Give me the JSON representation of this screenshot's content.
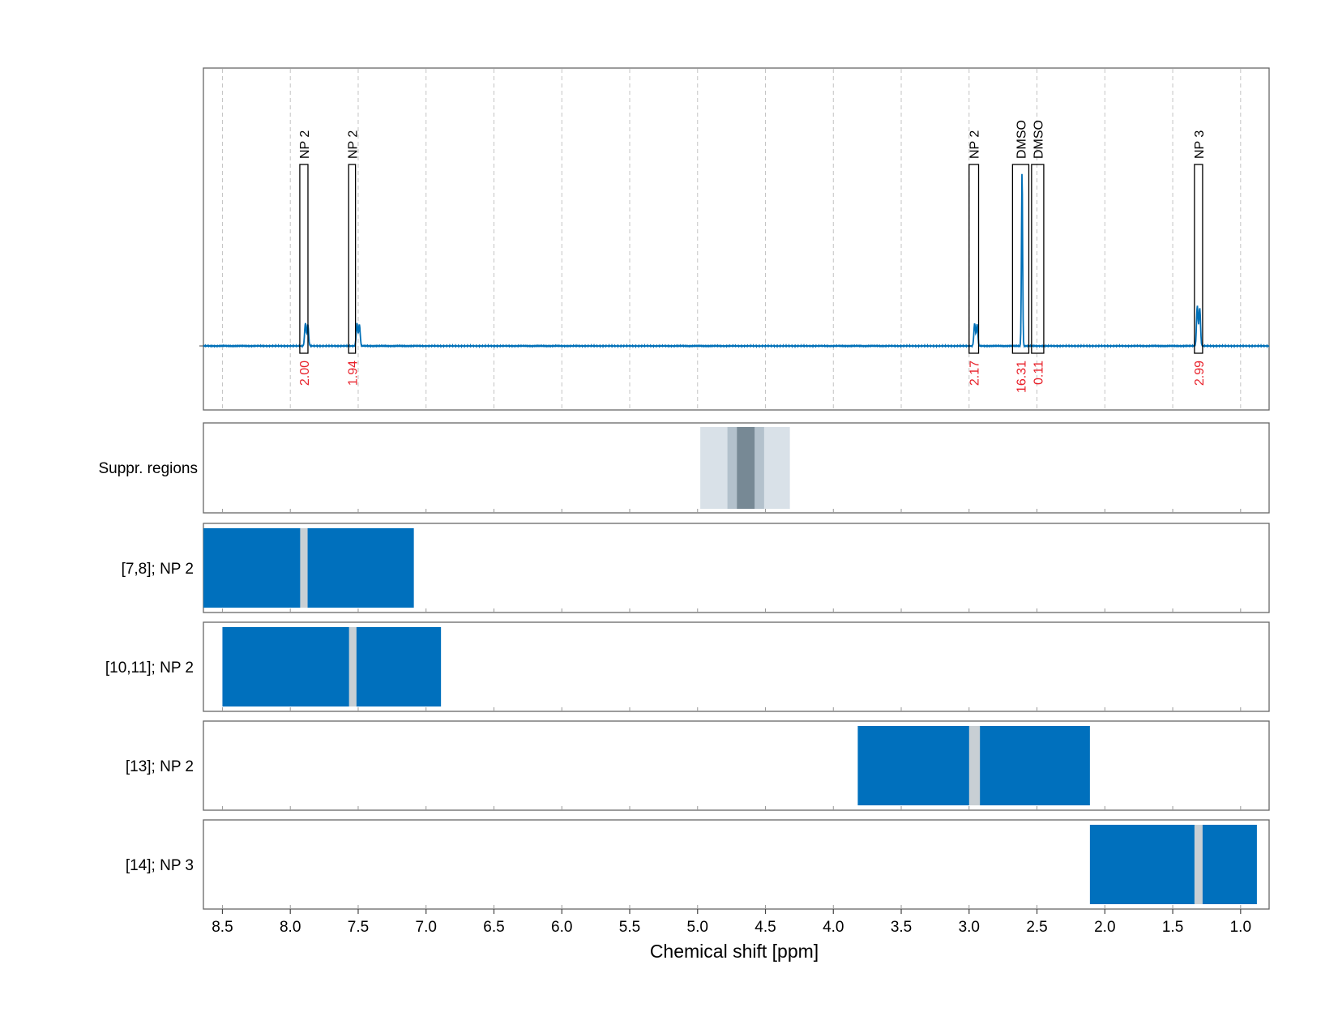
{
  "chart_data": {
    "type": "nmr-spectrum",
    "xlabel": "Chemical shift [ppm]",
    "xlim": [
      8.64,
      0.79
    ],
    "xticks": [
      "8.5",
      "8.0",
      "7.5",
      "7.0",
      "6.5",
      "6.0",
      "5.5",
      "5.0",
      "4.5",
      "4.0",
      "3.5",
      "3.0",
      "2.5",
      "2.0",
      "1.5",
      "1.0"
    ],
    "spectrum": {
      "color": "#0070b8",
      "peaks": [
        {
          "shift": 7.88,
          "height": 0.13
        },
        {
          "shift": 7.5,
          "height": 0.13
        },
        {
          "shift": 2.95,
          "height": 0.13
        },
        {
          "shift": 2.61,
          "height": 1.0
        },
        {
          "shift": 1.31,
          "height": 0.23
        }
      ]
    },
    "annotations": [
      {
        "label": "NP 2",
        "integral": "2.00",
        "from": 7.93,
        "to": 7.87
      },
      {
        "label": "NP 2",
        "integral": "1.94",
        "from": 7.57,
        "to": 7.52
      },
      {
        "label": "NP 2",
        "integral": "2.17",
        "from": 3.0,
        "to": 2.93
      },
      {
        "label": "DMSO",
        "integral": "16.31",
        "from": 2.68,
        "to": 2.56
      },
      {
        "label": "DMSO",
        "integral": "0.11",
        "from": 2.54,
        "to": 2.45
      },
      {
        "label": "NP 3",
        "integral": "2.99",
        "from": 1.34,
        "to": 1.28
      }
    ],
    "integral_color": "#e8212a",
    "suppression": {
      "label": "Suppr. regions",
      "regions": [
        {
          "from": 4.98,
          "to": 4.32,
          "color": "#d9e1e8"
        },
        {
          "from": 4.78,
          "to": 4.51,
          "color": "#b3c1cc"
        },
        {
          "from": 4.71,
          "to": 4.58,
          "color": "#778995"
        }
      ]
    },
    "signal_tracks": [
      {
        "label": "[7,8]; NP 2",
        "from": 8.64,
        "to": 7.09,
        "center": 7.9,
        "center_width": 0.055
      },
      {
        "label": "[10,11]; NP 2",
        "from": 8.5,
        "to": 6.89,
        "center": 7.54,
        "center_width": 0.055
      },
      {
        "label": "[13]; NP 2",
        "from": 3.82,
        "to": 2.11,
        "center": 2.96,
        "center_width": 0.08
      },
      {
        "label": "[14]; NP 3",
        "from": 2.11,
        "to": 0.88,
        "center": 1.31,
        "center_width": 0.06
      }
    ],
    "track_color": "#0070bd",
    "center_color": "#c8cfd4"
  }
}
